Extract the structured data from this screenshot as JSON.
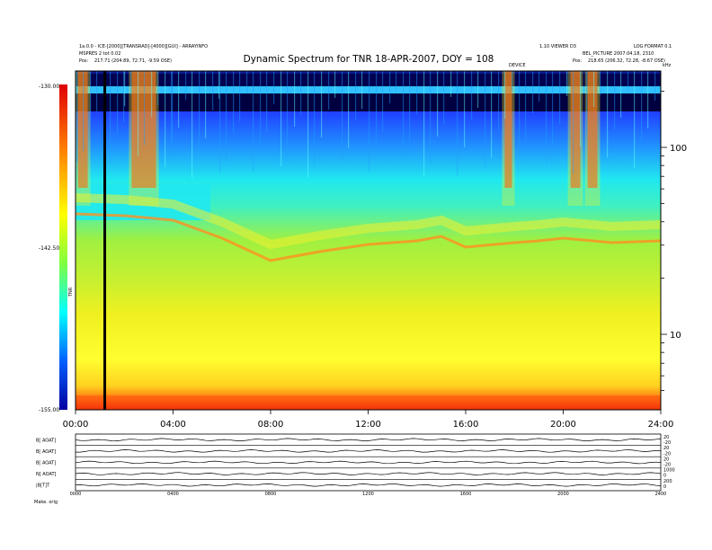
{
  "header": {
    "left_line1": "1a.0.0 - ICE-[2000][TRANSRAD]-[4000][GUI] - ARRAYINFO",
    "left_line2": "MSPRES 2 tot 0.02",
    "left_pos_label": "Pos:",
    "left_pos_value": "217.71 (204.89, 72.71, -9.59 OSE)",
    "right_line1": "1.10 VIEWER D3",
    "right_line1b": "LOG FORMAT 0.1",
    "right_line2": "BEL_PICTURE 2007.04.18, 2310",
    "right_pos_label": "Pos:",
    "right_pos_value": "218.65 (206.32, 72.28, -8.67 OSE)",
    "marker_label": "DEVICE",
    "unit_label": "kHz"
  },
  "chart_data": {
    "type": "heatmap",
    "title": "Dynamic Spectrum for TNR 18-APR-2007, DOY = 108",
    "colorbar": {
      "ticks": [
        "-130.00",
        "-142.50",
        "-155.00"
      ],
      "label": "TNR",
      "min": -155.0,
      "max": -130.0
    },
    "y_axis": {
      "scale": "log",
      "ticks": [
        "100",
        "10"
      ]
    },
    "x_axis": {
      "ticks": [
        "00:00",
        "04:00",
        "08:00",
        "12:00",
        "16:00",
        "20:00",
        "24:00"
      ],
      "range_hours": [
        0,
        24
      ]
    },
    "marker_line_hours": 1.2,
    "lower_panel": {
      "row_labels": [
        "B[ AOAT]",
        "B[ AOAT]",
        "B[ AOAT]",
        "N[ AOAT]",
        "|B[T]T"
      ],
      "right_labels": [
        "20",
        "-20",
        "20",
        "-20",
        "20",
        "-20",
        "1000",
        "0",
        "200",
        "0"
      ],
      "x_ticks": [
        "0000",
        "0400",
        "0800",
        "1200",
        "1600",
        "2000",
        "2400"
      ],
      "footer_left": "Make. orig"
    }
  }
}
